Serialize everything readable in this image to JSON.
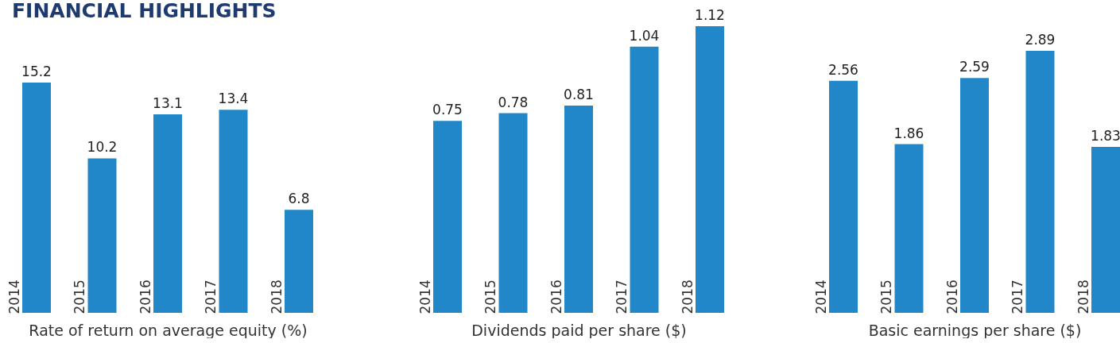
{
  "chart_data": [
    {
      "type": "bar",
      "title": "FINANCIAL HIGHLIGHTS",
      "categories": [
        "2014",
        "2015",
        "2016",
        "2017",
        "2018"
      ],
      "values": [
        15.2,
        10.2,
        13.1,
        13.4,
        6.8
      ],
      "color": "#2187c8",
      "xlabel": "Rate of return on average equity (%)",
      "data_labels": true,
      "tick_labels": "x"
    },
    {
      "type": "bar",
      "categories": [
        "2014",
        "2015",
        "2016",
        "2017",
        "2018"
      ],
      "values": [
        0.75,
        0.78,
        0.81,
        1.04,
        1.12
      ],
      "color": "#2187c8",
      "xlabel": "Dividends paid per share ($)",
      "data_labels": true,
      "tick_labels": "x"
    },
    {
      "type": "bar",
      "categories": [
        "2014",
        "2015",
        "2016",
        "2017",
        "2018"
      ],
      "values": [
        2.56,
        1.86,
        2.59,
        2.89,
        1.83
      ],
      "color": "#2187c8",
      "xlabel": "Basic earnings per share ($)",
      "data_labels": true,
      "tick_labels": "x"
    }
  ]
}
